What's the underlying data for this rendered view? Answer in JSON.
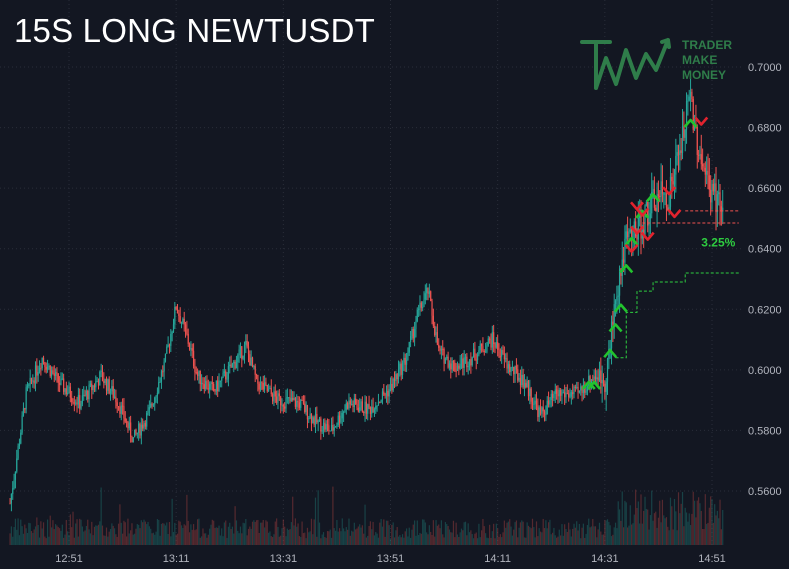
{
  "title": "15S LONG NEWTUSDT",
  "logo": {
    "lines": [
      "TRADER",
      "MAKE",
      "MONEY"
    ],
    "color": "#2f7d4a"
  },
  "colors": {
    "background": "#131722",
    "up": "#26a69a",
    "down": "#ef5350",
    "up_arrow": "#22c32e",
    "down_arrow": "#e2232e",
    "grid": "#2a2e39",
    "axis_text": "#b2b5be"
  },
  "chart_data": {
    "type": "candlestick",
    "y_ticks": [
      "0.7000",
      "0.6800",
      "0.6600",
      "0.6400",
      "0.6200",
      "0.6000",
      "0.5800",
      "0.5600"
    ],
    "y_tick_values": [
      0.7,
      0.68,
      0.66,
      0.64,
      0.62,
      0.6,
      0.58,
      0.56
    ],
    "ylim": [
      0.548,
      0.717
    ],
    "x_ticks": [
      "12:51",
      "13:11",
      "13:31",
      "13:51",
      "14:11",
      "14:31",
      "14:51"
    ],
    "x_range_minutes": [
      "12:40",
      "14:56"
    ],
    "grid": true,
    "trend": [
      {
        "t": "12:40",
        "p": 0.556
      },
      {
        "t": "12:43",
        "p": 0.592
      },
      {
        "t": "12:46",
        "p": 0.604
      },
      {
        "t": "12:49",
        "p": 0.596
      },
      {
        "t": "12:53",
        "p": 0.589
      },
      {
        "t": "12:57",
        "p": 0.598
      },
      {
        "t": "13:00",
        "p": 0.59
      },
      {
        "t": "13:03",
        "p": 0.577
      },
      {
        "t": "13:06",
        "p": 0.586
      },
      {
        "t": "13:09",
        "p": 0.603
      },
      {
        "t": "13:11",
        "p": 0.621
      },
      {
        "t": "13:13",
        "p": 0.611
      },
      {
        "t": "13:15",
        "p": 0.598
      },
      {
        "t": "13:18",
        "p": 0.593
      },
      {
        "t": "13:21",
        "p": 0.6
      },
      {
        "t": "13:24",
        "p": 0.608
      },
      {
        "t": "13:26",
        "p": 0.596
      },
      {
        "t": "13:30",
        "p": 0.59
      },
      {
        "t": "13:34",
        "p": 0.589
      },
      {
        "t": "13:37",
        "p": 0.583
      },
      {
        "t": "13:40",
        "p": 0.58
      },
      {
        "t": "13:43",
        "p": 0.589
      },
      {
        "t": "13:47",
        "p": 0.587
      },
      {
        "t": "13:51",
        "p": 0.594
      },
      {
        "t": "13:54",
        "p": 0.604
      },
      {
        "t": "13:56",
        "p": 0.618
      },
      {
        "t": "13:58",
        "p": 0.626
      },
      {
        "t": "14:00",
        "p": 0.606
      },
      {
        "t": "14:03",
        "p": 0.601
      },
      {
        "t": "14:06",
        "p": 0.604
      },
      {
        "t": "14:10",
        "p": 0.61
      },
      {
        "t": "14:13",
        "p": 0.601
      },
      {
        "t": "14:16",
        "p": 0.596
      },
      {
        "t": "14:19",
        "p": 0.585
      },
      {
        "t": "14:22",
        "p": 0.592
      },
      {
        "t": "14:26",
        "p": 0.592
      },
      {
        "t": "14:29",
        "p": 0.598
      },
      {
        "t": "14:31",
        "p": 0.598
      },
      {
        "t": "14:32",
        "p": 0.607
      },
      {
        "t": "14:33",
        "p": 0.625
      },
      {
        "t": "14:34",
        "p": 0.634
      },
      {
        "t": "14:35",
        "p": 0.641
      },
      {
        "t": "14:37",
        "p": 0.646
      },
      {
        "t": "14:39",
        "p": 0.652
      },
      {
        "t": "14:41",
        "p": 0.657
      },
      {
        "t": "14:43",
        "p": 0.658
      },
      {
        "t": "14:45",
        "p": 0.672
      },
      {
        "t": "14:47",
        "p": 0.69
      },
      {
        "t": "14:48",
        "p": 0.678
      },
      {
        "t": "14:50",
        "p": 0.662
      },
      {
        "t": "14:52",
        "p": 0.656
      },
      {
        "t": "14:53",
        "p": 0.652
      }
    ],
    "buy_markers": [
      {
        "t": "14:28",
        "p": 0.595
      },
      {
        "t": "14:29",
        "p": 0.595
      },
      {
        "t": "14:32",
        "p": 0.6055
      },
      {
        "t": "14:33",
        "p": 0.614
      },
      {
        "t": "14:34",
        "p": 0.6205
      },
      {
        "t": "14:35",
        "p": 0.6335
      },
      {
        "t": "14:36",
        "p": 0.6425
      },
      {
        "t": "14:38",
        "p": 0.6515
      },
      {
        "t": "14:40",
        "p": 0.657
      },
      {
        "t": "14:47",
        "p": 0.6815
      }
    ],
    "sell_markers": [
      {
        "t": "14:36",
        "p": 0.64
      },
      {
        "t": "14:37",
        "p": 0.646
      },
      {
        "t": "14:37",
        "p": 0.654
      },
      {
        "t": "14:38",
        "p": 0.652
      },
      {
        "t": "14:39",
        "p": 0.644
      },
      {
        "t": "14:43",
        "p": 0.659
      },
      {
        "t": "14:44",
        "p": 0.6515
      },
      {
        "t": "14:49",
        "p": 0.682
      }
    ],
    "stop_line": [
      {
        "t": "14:33",
        "p": 0.604
      },
      {
        "t": "14:35",
        "p": 0.619
      },
      {
        "t": "14:37",
        "p": 0.626
      },
      {
        "t": "14:40",
        "p": 0.629
      },
      {
        "t": "14:46",
        "p": 0.632
      },
      {
        "t": "14:56",
        "p": 0.632
      }
    ],
    "entry_lines": [
      {
        "from": "14:38",
        "to": "14:56",
        "p": 0.6485,
        "color": "#ef5350"
      },
      {
        "from": "14:46",
        "to": "14:56",
        "p": 0.6525,
        "color": "#ef5350"
      }
    ],
    "percent_label": {
      "text": "3.25%",
      "t": "14:49",
      "p": 0.642
    }
  }
}
